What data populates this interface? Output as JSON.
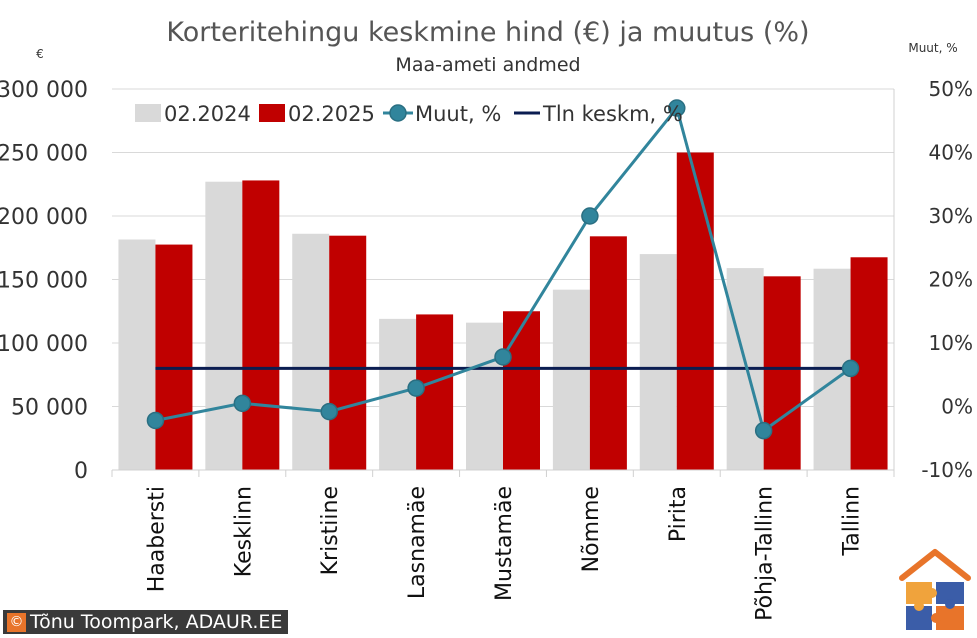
{
  "chart_data": {
    "type": "bar",
    "title": "Korteritehingu keskmine hind (€) ja muutus (%)",
    "subtitle": "Maa-ameti andmed",
    "y_left_unit": "€",
    "y_right_unit": "Muut, %",
    "categories": [
      "Haabersti",
      "Kesklinn",
      "Kristiine",
      "Lasnamäe",
      "Mustamäe",
      "Nõmme",
      "Pirita",
      "Põhja-Tallinn",
      "Tallinn"
    ],
    "series": [
      {
        "name": "02.2024",
        "type": "bar",
        "axis": "left",
        "color": "#d9d9d9",
        "values": [
          181500,
          227000,
          186000,
          119000,
          116000,
          142000,
          170000,
          159000,
          158500
        ]
      },
      {
        "name": "02.2025",
        "type": "bar",
        "axis": "left",
        "color": "#c00000",
        "values": [
          177500,
          228000,
          184500,
          122500,
          125000,
          184000,
          250000,
          152500,
          167500
        ]
      },
      {
        "name": "Muut, %",
        "type": "line",
        "axis": "right",
        "color": "#31859c",
        "values": [
          -2.2,
          0.5,
          -0.8,
          2.9,
          7.8,
          30.0,
          47.0,
          -3.8,
          6.0
        ]
      },
      {
        "name": "Tln keskm, %",
        "type": "line",
        "axis": "right",
        "color": "#0b1d51",
        "values": [
          6.0,
          6.0,
          6.0,
          6.0,
          6.0,
          6.0,
          6.0,
          6.0,
          6.0
        ]
      }
    ],
    "y_left": {
      "min": 0,
      "max": 300000,
      "step": 50000,
      "tick_labels": [
        "0",
        "50 000",
        "100 000",
        "150 000",
        "200 000",
        "250 000",
        "300 000"
      ]
    },
    "y_right": {
      "min": -10,
      "max": 50,
      "step": 10,
      "tick_labels": [
        "-10%",
        "0%",
        "10%",
        "20%",
        "30%",
        "40%",
        "50%"
      ]
    },
    "grid": true,
    "legend_position": "top-left"
  },
  "credit": {
    "symbol": "©",
    "text": "Tõnu Toompark, ADAUR.EE"
  },
  "logo": {
    "icon": "house-puzzle-icon"
  }
}
